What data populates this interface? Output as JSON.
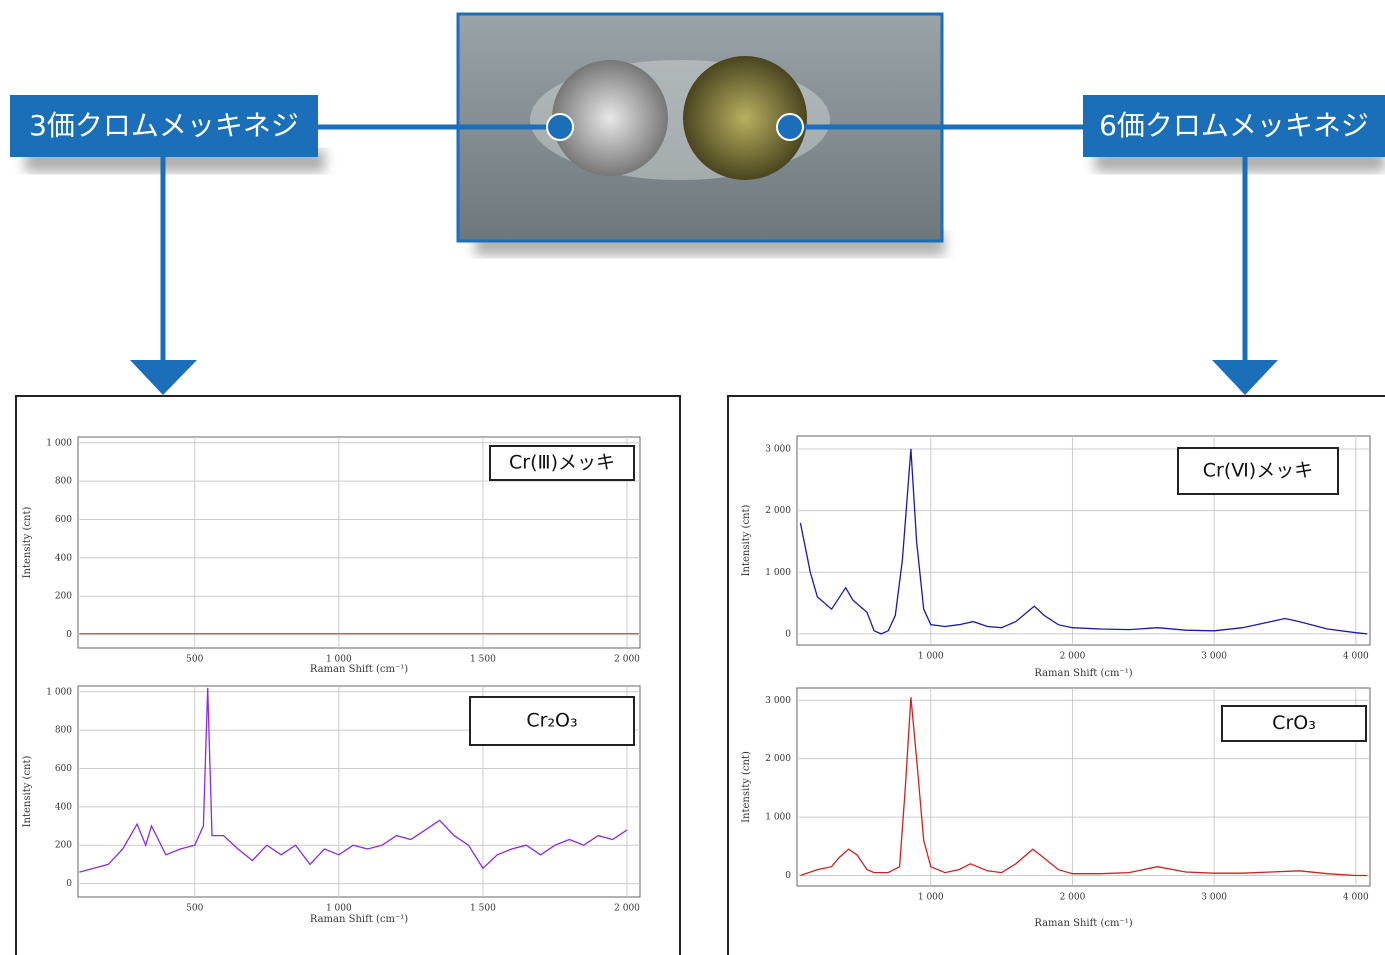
{
  "labels": {
    "left": "3価クロムメッキネジ",
    "right": "6価クロムメッキネジ"
  },
  "chart_data": [
    {
      "type": "line",
      "x_label": "Raman Shift (cm⁻¹)",
      "y_label": "Intensity (cnt)",
      "xlim": [
        95,
        2045
      ],
      "ylim": [
        -70,
        1030
      ],
      "grid": true,
      "xticks": [
        500,
        {
          "value": 1000,
          "label": "1 000"
        },
        {
          "value": 1500,
          "label": "1 500"
        },
        {
          "value": 2000,
          "label": "2 000"
        }
      ],
      "yticks": [
        0,
        200,
        400,
        600,
        800,
        {
          "value": 1000,
          "label": "1 000"
        }
      ],
      "x": [
        100,
        500,
        1000,
        1500,
        2040
      ],
      "series": [
        {
          "name": "Cr(Ⅲ)メッキ",
          "color": "#e05050",
          "values": [
            5,
            5,
            5,
            5,
            5
          ]
        }
      ]
    },
    {
      "type": "line",
      "x_label": "Raman Shift (cm⁻¹)",
      "y_label": "Intensity (cnt)",
      "xlim": [
        95,
        2045
      ],
      "ylim": [
        -70,
        1030
      ],
      "grid": true,
      "xticks": [
        500,
        {
          "value": 1000,
          "label": "1 000"
        },
        {
          "value": 1500,
          "label": "1 500"
        },
        {
          "value": 2000,
          "label": "2 000"
        }
      ],
      "yticks": [
        0,
        200,
        400,
        600,
        800,
        {
          "value": 1000,
          "label": "1 000"
        }
      ],
      "x": [
        100,
        150,
        200,
        250,
        300,
        330,
        350,
        400,
        450,
        500,
        530,
        545,
        560,
        600,
        650,
        700,
        750,
        800,
        850,
        900,
        950,
        1000,
        1050,
        1100,
        1150,
        1200,
        1250,
        1300,
        1350,
        1400,
        1450,
        1500,
        1550,
        1600,
        1650,
        1700,
        1750,
        1800,
        1850,
        1900,
        1950,
        2000
      ],
      "series": [
        {
          "name": "Cr₂O₃",
          "color": "#8a2be2",
          "values": [
            60,
            80,
            100,
            180,
            310,
            200,
            300,
            150,
            180,
            200,
            300,
            1020,
            250,
            250,
            180,
            120,
            200,
            150,
            200,
            100,
            180,
            150,
            200,
            180,
            200,
            250,
            230,
            280,
            330,
            250,
            200,
            80,
            150,
            180,
            200,
            150,
            200,
            230,
            200,
            250,
            230,
            280
          ]
        }
      ]
    },
    {
      "type": "line",
      "x_label": "Raman Shift (cm⁻¹)",
      "y_label": "Intensity (cnt)",
      "xlim": [
        56,
        4100
      ],
      "ylim": [
        -180,
        3210
      ],
      "grid": true,
      "xticks": [
        {
          "value": 1000,
          "label": "1 000"
        },
        {
          "value": 2000,
          "label": "2 000"
        },
        {
          "value": 3000,
          "label": "3 000"
        },
        {
          "value": 4000,
          "label": "4 000"
        }
      ],
      "yticks": [
        0,
        {
          "value": 1000,
          "label": "1 000"
        },
        {
          "value": 2000,
          "label": "2 000"
        },
        {
          "value": 3000,
          "label": "3 000"
        }
      ],
      "x": [
        80,
        150,
        200,
        300,
        400,
        450,
        500,
        550,
        600,
        650,
        700,
        750,
        800,
        860,
        900,
        950,
        1000,
        1100,
        1200,
        1300,
        1400,
        1500,
        1600,
        1730,
        1800,
        1900,
        2000,
        2200,
        2400,
        2600,
        2800,
        3000,
        3200,
        3400,
        3500,
        3600,
        3800,
        4000,
        4080
      ],
      "series": [
        {
          "name": "Cr(Ⅵ)メッキ",
          "color": "#1a1aaa",
          "values": [
            1800,
            1000,
            600,
            400,
            750,
            550,
            450,
            350,
            50,
            0,
            50,
            300,
            1200,
            3000,
            1500,
            400,
            150,
            120,
            150,
            200,
            120,
            100,
            200,
            450,
            300,
            150,
            100,
            80,
            70,
            100,
            60,
            50,
            100,
            200,
            250,
            200,
            80,
            20,
            0
          ]
        }
      ]
    },
    {
      "type": "line",
      "x_label": "Raman Shift (cm⁻¹)",
      "y_label": "Intensity (cnt)",
      "xlim": [
        56,
        4100
      ],
      "ylim": [
        -180,
        3210
      ],
      "grid": true,
      "xticks": [
        {
          "value": 1000,
          "label": "1 000"
        },
        {
          "value": 2000,
          "label": "2 000"
        },
        {
          "value": 3000,
          "label": "3 000"
        },
        {
          "value": 4000,
          "label": "4 000"
        }
      ],
      "yticks": [
        0,
        {
          "value": 1000,
          "label": "1 000"
        },
        {
          "value": 2000,
          "label": "2 000"
        },
        {
          "value": 3000,
          "label": "3 000"
        }
      ],
      "x": [
        80,
        200,
        300,
        350,
        420,
        480,
        550,
        600,
        700,
        780,
        820,
        860,
        900,
        950,
        1000,
        1100,
        1200,
        1280,
        1400,
        1500,
        1600,
        1720,
        1800,
        1900,
        2000,
        2200,
        2400,
        2600,
        2800,
        3000,
        3200,
        3400,
        3600,
        3800,
        4000,
        4080
      ],
      "series": [
        {
          "name": "CrO₃",
          "color": "#cc2222",
          "values": [
            0,
            100,
            150,
            300,
            450,
            350,
            100,
            50,
            50,
            150,
            1500,
            3050,
            2000,
            600,
            150,
            50,
            100,
            200,
            80,
            50,
            200,
            450,
            300,
            100,
            30,
            30,
            50,
            150,
            60,
            40,
            40,
            60,
            80,
            30,
            0,
            0
          ]
        }
      ]
    }
  ]
}
